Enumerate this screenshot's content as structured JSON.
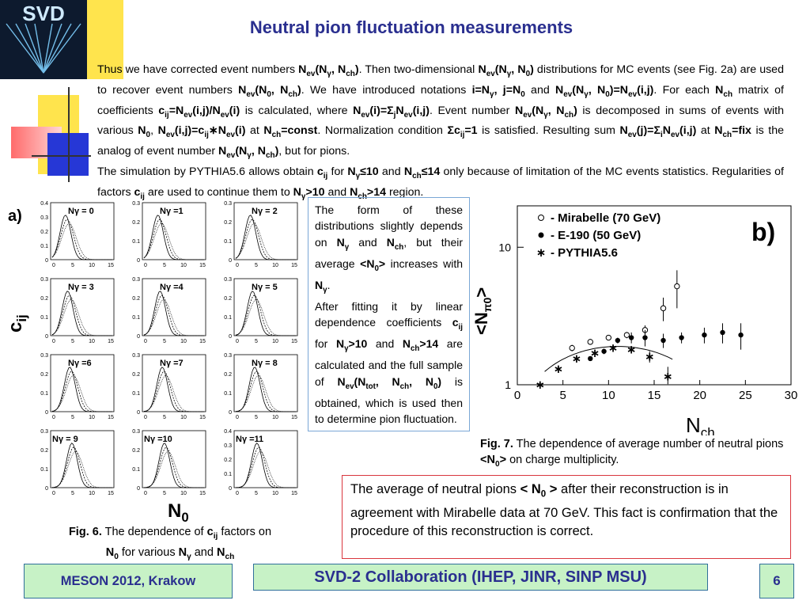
{
  "slide": {
    "title": "Neutral pion fluctuation measurements",
    "page_number": "6"
  },
  "logo": {
    "text": "SVD"
  },
  "footer": {
    "left": "MESON 2012, Krakow",
    "center": "SVD-2 Collaboration (IHEP, JINR, SINP MSU)",
    "right": "6"
  },
  "paragraph": {
    "t1": "Thus we have corrected event numbers ",
    "t2": "N",
    "t3": "ev",
    "t4": "(N",
    "t5": "γ",
    "t6": ", N",
    "t7": "ch",
    "t8": ")",
    "t9": ". Then two-dimensional ",
    "t10": " distributions for MC events (see Fig. 2a) are used to recover event numbers ",
    "t11": ". We have introduced notations ",
    "t12": " and ",
    "t13": ". For each ",
    "t14": " matrix of coefficients ",
    "t15": " is calculated, where ",
    "t16": ". Event number ",
    "t17": " is decomposed in sums of events with various ",
    "t18": " at ",
    "t19": ". Normalization condition ",
    "t20": " is satisfied. Resulting sum ",
    "t21": " is the analog of event number ",
    "t22": ", but for pions.",
    "t23": "The simulation by PYTHIA5.6 allows obtain ",
    "t24": " for ",
    "t25": " only because of limitation of the MC events statistics. Regularities of factors ",
    "t26": " are used to continue  them to ",
    "t27": " region."
  },
  "mid_box": {
    "p1": "The form of these distributions slightly depends on ",
    "p2": " and ",
    "p3": ", but their average ",
    "p4": " increases with ",
    "p5": "After fitting it by linear dependence coefficients ",
    "p6": " for ",
    "p7": " are calculated and the full sample of ",
    "p8": " is obtained, which is used then to determine pion fluctuation."
  },
  "fig6": {
    "panel_label": "a)",
    "ylabel": "c",
    "ylabel_sub": "ij",
    "xlabel": "N",
    "xlabel_sub": "0",
    "caption_bold": "Fig. 6.",
    "caption_1": " The dependence of ",
    "caption_2": " factors on ",
    "caption_3": " for various ",
    "caption_4": " and ",
    "panels": [
      {
        "label": "Nγ = 0",
        "ymax": "0.4",
        "yticks": [
          "0.4",
          "0.3",
          "0.2",
          "0.1",
          "0"
        ]
      },
      {
        "label": "Nγ =1",
        "ymax": "0.3",
        "yticks": [
          "0.3",
          "0.2",
          "0.1",
          "0"
        ]
      },
      {
        "label": "Nγ = 2",
        "ymax": "0.3",
        "yticks": [
          "0.3",
          "0.2",
          "0.1",
          "0"
        ]
      },
      {
        "label": "Nγ = 3",
        "ymax": "0.3",
        "yticks": [
          "0.3",
          "0.2",
          "0.1",
          "0"
        ]
      },
      {
        "label": "Nγ =4",
        "ymax": "0.3",
        "yticks": [
          "0.3",
          "0.2",
          "0.1",
          "0"
        ]
      },
      {
        "label": "Nγ = 5",
        "ymax": "0.3",
        "yticks": [
          "0.3",
          "0.2",
          "0.1",
          "0"
        ]
      },
      {
        "label": "Nγ =6",
        "ymax": "0.3",
        "yticks": [
          "0.3",
          "0.2",
          "0.1",
          "0"
        ]
      },
      {
        "label": "Nγ =7",
        "ymax": "0.3",
        "yticks": [
          "0.3",
          "0.2",
          "0.1",
          "0"
        ]
      },
      {
        "label": "Nγ = 8",
        "ymax": "0.3",
        "yticks": [
          "0.3",
          "0.2",
          "0.1",
          "0"
        ]
      },
      {
        "label": "Nγ = 9",
        "ymax": "0.3",
        "yticks": [
          "0.3",
          "0.2",
          "0.1",
          "0"
        ]
      },
      {
        "label": "Nγ =10",
        "ymax": "0.3",
        "yticks": [
          "0.3",
          "0.2",
          "0.1",
          "0"
        ]
      },
      {
        "label": "Nγ =11",
        "ymax": "0.4",
        "yticks": [
          "0.4",
          "0.3",
          "0.2",
          "0.1",
          "0"
        ]
      }
    ],
    "xticks": [
      "0",
      "5",
      "10",
      "15"
    ]
  },
  "chart_data": {
    "type": "scatter",
    "panel_label": "b)",
    "xlabel": "N",
    "xlabel_sub": "ch",
    "ylabel": "<N",
    "ylabel_sub": "π0",
    "ylabel_end": ">",
    "xlim": [
      0,
      30
    ],
    "ylim": [
      1,
      20
    ],
    "log_y": true,
    "xticks": [
      "0",
      "5",
      "10",
      "15",
      "20",
      "25",
      "30"
    ],
    "yticks": [
      "10",
      "1"
    ],
    "legend_placement": "top-left",
    "series": [
      {
        "name": "- Mirabelle (70 GeV)",
        "marker": "open-circle",
        "points": [
          [
            6,
            1.85
          ],
          [
            8,
            2.05
          ],
          [
            10,
            2.2
          ],
          [
            12,
            2.3
          ],
          [
            14,
            2.5
          ],
          [
            16,
            3.6
          ],
          [
            17.5,
            5.2
          ]
        ],
        "yerr": [
          0.1,
          0.1,
          0.1,
          0.12,
          0.2,
          0.7,
          1.6
        ]
      },
      {
        "name": "- E-190 (50 GeV)",
        "marker": "filled-circle",
        "points": [
          [
            8,
            1.55
          ],
          [
            9.5,
            1.75
          ],
          [
            11,
            2.1
          ],
          [
            12.5,
            2.2
          ],
          [
            14,
            2.2
          ],
          [
            16,
            2.1
          ],
          [
            18,
            2.2
          ],
          [
            20.5,
            2.3
          ],
          [
            22.5,
            2.4
          ],
          [
            24.5,
            2.3
          ]
        ],
        "yerr": [
          0.05,
          0.08,
          0.1,
          0.2,
          0.3,
          0.25,
          0.2,
          0.3,
          0.4,
          0.5
        ]
      },
      {
        "name": "- PYTHIA5.6",
        "marker": "star",
        "points": [
          [
            2.5,
            0.95
          ],
          [
            4.5,
            1.3
          ],
          [
            6.5,
            1.55
          ],
          [
            8.5,
            1.7
          ],
          [
            10.5,
            1.85
          ],
          [
            12.5,
            1.8
          ],
          [
            14.5,
            1.6
          ],
          [
            16.5,
            1.15
          ]
        ],
        "yerr": [
          0,
          0.05,
          0.05,
          0.06,
          0.08,
          0.1,
          0.15,
          0.2
        ]
      }
    ],
    "fit_curve_peak": [
      11,
      1.9
    ]
  },
  "fig7": {
    "caption_bold": "Fig. 7.",
    "caption_1": " The dependence of average number of neutral pions ",
    "caption_2": "  on charge multiplicity."
  },
  "conclusion": {
    "p1": "The average of  neutral pions ",
    "p2": " after their reconstruction is in agreement with Mirabelle data at 70 GeV. This fact is  confirmation that the procedure of this reconstruction is correct."
  },
  "symbols": {
    "N": "N",
    "ev": "ev",
    "ch": "ch",
    "gamma": "γ",
    "zero": "0",
    "n_ev_ng_n0": "N",
    "i_eq": "i=N",
    "j_eq": "j=N",
    "sigma": "Σ",
    "cij": "c",
    "ij": "ij",
    "avg_n0_open": "<N",
    "avg_n0_close": ">",
    "gt10": ">10",
    "le10": "≤10",
    "le14": "≤14",
    "gt14": ">14",
    "tot": "tot"
  },
  "colors": {
    "title": "#2a2f8f",
    "footer_bg": "#c7f2c6",
    "footer_text": "#2a2f8f",
    "conclusion_border": "#d9363e",
    "mid_box_border": "#7aa7d6"
  }
}
